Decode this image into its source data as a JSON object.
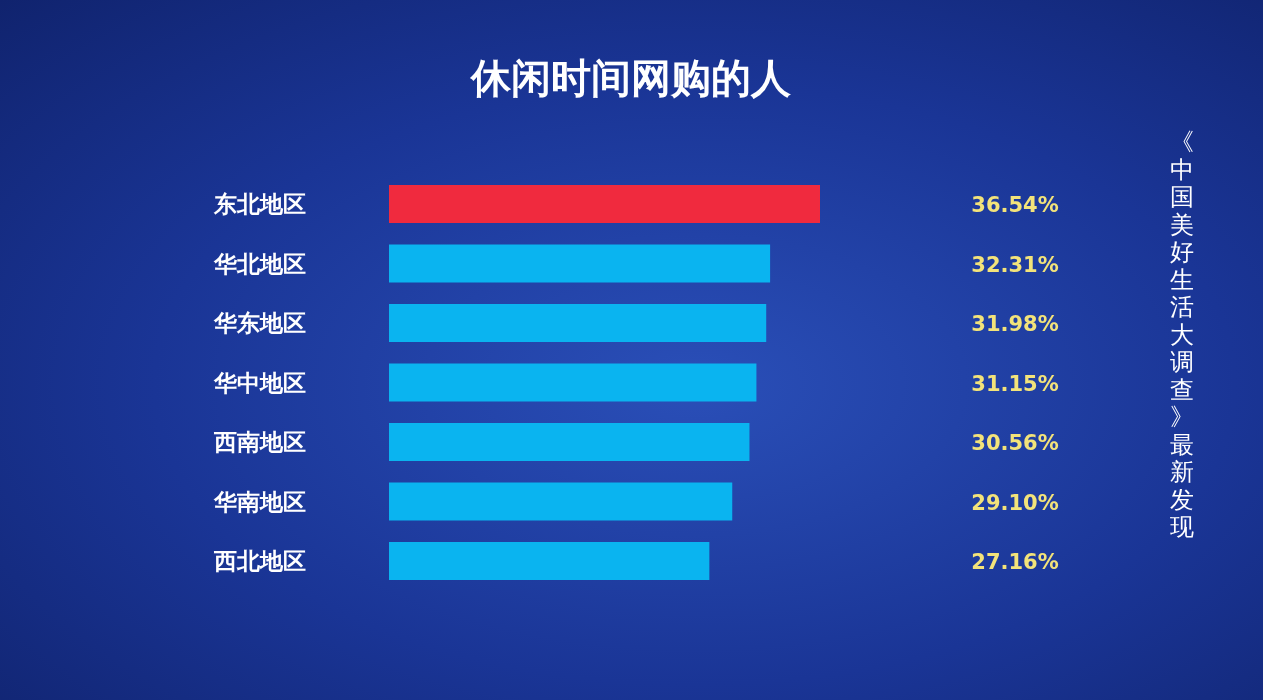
{
  "chart_data": {
    "type": "bar",
    "orientation": "horizontal",
    "title": "休闲时间网购的人",
    "categories": [
      "东北地区",
      "华北地区",
      "华东地区",
      "华中地区",
      "西南地区",
      "华南地区",
      "西北地区"
    ],
    "values": [
      36.54,
      32.31,
      31.98,
      31.15,
      30.56,
      29.1,
      27.16
    ],
    "value_labels": [
      "36.54%",
      "32.31%",
      "31.98%",
      "31.15%",
      "30.56%",
      "29.10%",
      "27.16%"
    ],
    "colors": [
      "#f02a3e",
      "#0ab4f0",
      "#0ab4f0",
      "#0ab4f0",
      "#0ab4f0",
      "#0ab4f0",
      "#0ab4f0"
    ],
    "annotations": [
      "《中国美好生活大调查》最新发现"
    ]
  }
}
